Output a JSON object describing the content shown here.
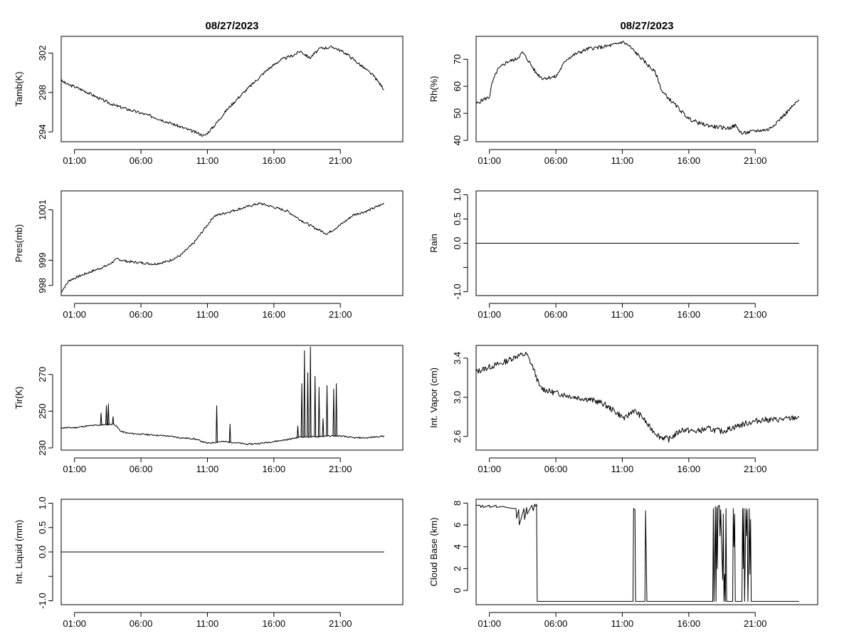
{
  "chart_data": [
    {
      "id": "tamb",
      "type": "line",
      "title": "08/27/2023",
      "xlabel": "",
      "ylabel": "Tamb(K)",
      "xlim": [
        0,
        25.7
      ],
      "ylim": [
        293.0,
        303.7
      ],
      "xticks": [
        {
          "v": 1,
          "label": "01:00"
        },
        {
          "v": 6,
          "label": "06:00"
        },
        {
          "v": 11,
          "label": "11:00"
        },
        {
          "v": 16,
          "label": "16:00"
        },
        {
          "v": 21,
          "label": "21:00"
        }
      ],
      "yticks": [
        {
          "v": 294,
          "label": "294"
        },
        {
          "v": 298,
          "label": "298"
        },
        {
          "v": 302,
          "label": "302"
        }
      ],
      "series": [
        {
          "name": "Tamb",
          "noise": 0.15,
          "seed": 3,
          "x": [
            0,
            0.5,
            1,
            2,
            3,
            4,
            5,
            6,
            7,
            8,
            9,
            10,
            10.8,
            11.5,
            12.5,
            13.5,
            14.5,
            15.5,
            16.5,
            17.5,
            18,
            18.7,
            19.5,
            20.5,
            21.5,
            22.5,
            23.5,
            24.3
          ],
          "y": [
            299.2,
            298.8,
            298.6,
            298.0,
            297.3,
            296.7,
            296.3,
            295.9,
            295.5,
            295.0,
            294.5,
            294.0,
            293.6,
            294.6,
            296.3,
            297.7,
            299.0,
            300.3,
            301.3,
            301.8,
            302.2,
            301.5,
            302.5,
            302.6,
            301.9,
            300.8,
            299.7,
            298.3
          ]
        }
      ]
    },
    {
      "id": "rh",
      "type": "line",
      "title": "08/27/2023",
      "xlabel": "",
      "ylabel": "Rh(%)",
      "xlim": [
        0,
        25.7
      ],
      "ylim": [
        39.5,
        78.5
      ],
      "xticks": [
        {
          "v": 1,
          "label": "01:00"
        },
        {
          "v": 6,
          "label": "06:00"
        },
        {
          "v": 11,
          "label": "11:00"
        },
        {
          "v": 16,
          "label": "16:00"
        },
        {
          "v": 21,
          "label": "21:00"
        }
      ],
      "yticks": [
        {
          "v": 40,
          "label": "40"
        },
        {
          "v": 50,
          "label": "50"
        },
        {
          "v": 60,
          "label": "60"
        },
        {
          "v": 70,
          "label": "70"
        }
      ],
      "series": [
        {
          "name": "Rh",
          "noise": 0.7,
          "seed": 5,
          "x": [
            0,
            0.5,
            1,
            1.2,
            1.6,
            2.3,
            3,
            3.5,
            4,
            4.5,
            5,
            6,
            6.8,
            7.5,
            8.5,
            9.5,
            10.5,
            11,
            11.5,
            12.5,
            13.5,
            14,
            15,
            16,
            17,
            18,
            19,
            19.5,
            20,
            21,
            22,
            23,
            24.3
          ],
          "y": [
            53.5,
            55.0,
            56.0,
            61.0,
            66.0,
            69.0,
            70.0,
            72.5,
            69.0,
            65.0,
            63.0,
            63.5,
            70.0,
            72.0,
            74.0,
            74.5,
            75.5,
            76.5,
            75.0,
            70.0,
            65.0,
            58.0,
            53.0,
            48.0,
            46.0,
            45.0,
            44.5,
            45.5,
            42.5,
            43.5,
            44.0,
            48.5,
            55.0
          ]
        }
      ]
    },
    {
      "id": "pres",
      "type": "line",
      "title": "",
      "xlabel": "",
      "ylabel": "Pres(mb)",
      "xlim": [
        0,
        25.7
      ],
      "ylim": [
        997.6,
        1001.75
      ],
      "xticks": [
        {
          "v": 1,
          "label": "01:00"
        },
        {
          "v": 6,
          "label": "06:00"
        },
        {
          "v": 11,
          "label": "11:00"
        },
        {
          "v": 16,
          "label": "16:00"
        },
        {
          "v": 21,
          "label": "21:00"
        }
      ],
      "yticks": [
        {
          "v": 998,
          "label": "998"
        },
        {
          "v": 999,
          "label": "999"
        },
        {
          "v": 1001,
          "label": "1001"
        }
      ],
      "series": [
        {
          "name": "Pres",
          "noise": 0.05,
          "seed": 7,
          "x": [
            0,
            0.6,
            1.5,
            2.5,
            3.5,
            4.2,
            5,
            6,
            7,
            8,
            9,
            10,
            11,
            11.5,
            12.5,
            13.5,
            14.5,
            15,
            16,
            17,
            18,
            19,
            20,
            21,
            22,
            23,
            24.3
          ],
          "y": [
            997.75,
            998.2,
            998.4,
            998.6,
            998.8,
            999.05,
            998.95,
            998.9,
            998.85,
            998.95,
            999.2,
            999.7,
            1000.4,
            1000.75,
            1000.9,
            1001.05,
            1001.2,
            1001.25,
            1001.1,
            1000.95,
            1000.6,
            1000.3,
            1000.05,
            1000.4,
            1000.8,
            1000.95,
            1001.25
          ]
        }
      ]
    },
    {
      "id": "rain",
      "type": "line",
      "title": "",
      "xlabel": "",
      "ylabel": "Rain",
      "xlim": [
        0,
        25.7
      ],
      "ylim": [
        -1.08,
        1.08
      ],
      "xticks": [
        {
          "v": 1,
          "label": "01:00"
        },
        {
          "v": 6,
          "label": "06:00"
        },
        {
          "v": 11,
          "label": "11:00"
        },
        {
          "v": 16,
          "label": "16:00"
        },
        {
          "v": 21,
          "label": "21:00"
        }
      ],
      "yticks": [
        {
          "v": -1.0,
          "label": "-1.0"
        },
        {
          "v": -0.5,
          "label": ""
        },
        {
          "v": 0.0,
          "label": "0.0"
        },
        {
          "v": 0.5,
          "label": "0.5"
        },
        {
          "v": 1.0,
          "label": "1.0"
        }
      ],
      "series": [
        {
          "name": "Rain",
          "noise": 0,
          "seed": 1,
          "x": [
            0,
            24.3
          ],
          "y": [
            0,
            0
          ]
        }
      ]
    },
    {
      "id": "tir",
      "type": "line",
      "title": "",
      "xlabel": "",
      "ylabel": "Tir(K)",
      "xlim": [
        0,
        25.7
      ],
      "ylim": [
        228.8,
        285.8
      ],
      "xticks": [
        {
          "v": 1,
          "label": "01:00"
        },
        {
          "v": 6,
          "label": "06:00"
        },
        {
          "v": 11,
          "label": "11:00"
        },
        {
          "v": 16,
          "label": "16:00"
        },
        {
          "v": 21,
          "label": "21:00"
        }
      ],
      "yticks": [
        {
          "v": 230,
          "label": "230"
        },
        {
          "v": 250,
          "label": "250"
        },
        {
          "v": 270,
          "label": "270"
        }
      ],
      "series": [
        {
          "name": "Tir",
          "noise": 0.4,
          "seed": 11,
          "x": [
            0,
            1,
            2,
            3,
            4,
            4.5,
            5,
            6,
            7,
            8,
            9,
            10,
            11,
            12,
            13,
            14,
            15,
            16,
            17,
            18,
            19,
            20,
            21,
            22,
            23,
            24.3
          ],
          "y": [
            241.0,
            241.0,
            242.0,
            242.5,
            243.0,
            239.0,
            238.0,
            237.5,
            237.0,
            236.5,
            235.5,
            235.0,
            232.5,
            233.5,
            233.0,
            232.0,
            232.5,
            233.5,
            234.5,
            236.0,
            236.0,
            236.5,
            236.5,
            235.5,
            235.5,
            236.5
          ]
        }
      ],
      "spikes": [
        {
          "x": 3.0,
          "y": 249
        },
        {
          "x": 3.4,
          "y": 253
        },
        {
          "x": 3.55,
          "y": 254
        },
        {
          "x": 3.9,
          "y": 247
        },
        {
          "x": 11.7,
          "y": 253
        },
        {
          "x": 12.7,
          "y": 243
        },
        {
          "x": 17.8,
          "y": 242
        },
        {
          "x": 18.1,
          "y": 265
        },
        {
          "x": 18.3,
          "y": 283
        },
        {
          "x": 18.55,
          "y": 271
        },
        {
          "x": 18.75,
          "y": 285
        },
        {
          "x": 19.1,
          "y": 269
        },
        {
          "x": 19.4,
          "y": 263
        },
        {
          "x": 20.0,
          "y": 264
        },
        {
          "x": 20.5,
          "y": 262
        },
        {
          "x": 20.7,
          "y": 265
        },
        {
          "x": 19.7,
          "y": 246
        }
      ]
    },
    {
      "id": "vapor",
      "type": "line",
      "title": "",
      "xlabel": "",
      "ylabel": "Int. Vapor (cm)",
      "xlim": [
        0,
        25.7
      ],
      "ylim": [
        2.46,
        3.53
      ],
      "xticks": [
        {
          "v": 1,
          "label": "01:00"
        },
        {
          "v": 6,
          "label": "06:00"
        },
        {
          "v": 11,
          "label": "11:00"
        },
        {
          "v": 16,
          "label": "16:00"
        },
        {
          "v": 21,
          "label": "21:00"
        }
      ],
      "yticks": [
        {
          "v": 2.6,
          "label": "2.6"
        },
        {
          "v": 3.0,
          "label": "3.0"
        },
        {
          "v": 3.4,
          "label": "3.4"
        }
      ],
      "series": [
        {
          "name": "Int. Vapor",
          "noise": 0.03,
          "seed": 13,
          "x": [
            0,
            1,
            2,
            3,
            3.8,
            4.3,
            4.8,
            5.5,
            6.5,
            7.5,
            8.5,
            9.5,
            10.5,
            11.2,
            11.8,
            12.5,
            13,
            13.8,
            14.5,
            15.5,
            16.5,
            17.5,
            18.5,
            19.5,
            20.5,
            21.5,
            22.5,
            23.5,
            24.3
          ],
          "y": [
            3.26,
            3.31,
            3.35,
            3.42,
            3.44,
            3.3,
            3.1,
            3.06,
            3.03,
            3.0,
            2.98,
            2.94,
            2.85,
            2.78,
            2.87,
            2.8,
            2.7,
            2.6,
            2.57,
            2.67,
            2.65,
            2.68,
            2.65,
            2.7,
            2.74,
            2.77,
            2.77,
            2.78,
            2.8
          ]
        }
      ]
    },
    {
      "id": "liquid",
      "type": "line",
      "title": "",
      "xlabel": "",
      "ylabel": "Int. Liquid (mm)",
      "xlim": [
        0,
        25.7
      ],
      "ylim": [
        -1.08,
        1.08
      ],
      "xticks": [
        {
          "v": 1,
          "label": "01:00"
        },
        {
          "v": 6,
          "label": "06:00"
        },
        {
          "v": 11,
          "label": "11:00"
        },
        {
          "v": 16,
          "label": "16:00"
        },
        {
          "v": 21,
          "label": "21:00"
        }
      ],
      "yticks": [
        {
          "v": -1.0,
          "label": "-1.0"
        },
        {
          "v": -0.5,
          "label": ""
        },
        {
          "v": 0.0,
          "label": "0.0"
        },
        {
          "v": 0.5,
          "label": "0.5"
        },
        {
          "v": 1.0,
          "label": "1.0"
        }
      ],
      "series": [
        {
          "name": "Int. Liquid",
          "noise": 0,
          "seed": 1,
          "x": [
            0,
            24.3
          ],
          "y": [
            0,
            0
          ]
        }
      ]
    },
    {
      "id": "cloud",
      "type": "line",
      "title": "",
      "xlabel": "",
      "ylabel": "Cloud Base (km)",
      "xlim": [
        0,
        25.7
      ],
      "ylim": [
        -1.3,
        8.35
      ],
      "xticks": [
        {
          "v": 1,
          "label": "01:00"
        },
        {
          "v": 6,
          "label": "06:00"
        },
        {
          "v": 11,
          "label": "11:00"
        },
        {
          "v": 16,
          "label": "16:00"
        },
        {
          "v": 21,
          "label": "21:00"
        }
      ],
      "yticks": [
        {
          "v": 0,
          "label": "0"
        },
        {
          "v": 2,
          "label": "2"
        },
        {
          "v": 4,
          "label": "4"
        },
        {
          "v": 6,
          "label": "6"
        },
        {
          "v": 8,
          "label": "8"
        }
      ],
      "series": [
        {
          "name": "Cloud Base",
          "noise": 0,
          "seed": 1,
          "x": [
            0,
            0.3,
            0.35,
            0.5,
            0.55,
            1.0,
            1.05,
            1.5,
            1.55,
            2.0,
            2.3,
            2.8,
            3.0,
            3.05,
            3.2,
            3.25,
            3.6,
            3.65,
            3.8,
            3.85,
            4.2,
            4.3,
            4.4,
            4.5,
            4.55,
            4.6,
            11.8,
            11.85,
            11.95,
            12.0,
            12.7,
            12.75,
            12.8,
            12.85,
            17.8,
            17.85,
            17.9,
            17.95,
            18.0,
            18.05,
            18.1,
            18.15,
            18.2,
            18.3,
            18.35,
            18.4,
            18.5,
            18.55,
            18.6,
            18.65,
            18.7,
            18.75,
            18.8,
            18.85,
            19.3,
            19.35,
            19.4,
            19.45,
            19.5,
            20.0,
            20.05,
            20.1,
            20.15,
            20.2,
            20.3,
            20.35,
            20.4,
            20.45,
            20.5,
            20.55,
            20.6,
            20.65,
            20.7,
            20.75,
            24.3
          ],
          "y": [
            7.8,
            7.8,
            7.6,
            7.8,
            7.6,
            7.8,
            7.6,
            7.8,
            7.6,
            7.7,
            7.6,
            7.5,
            7.5,
            6.6,
            7.4,
            6.0,
            7.5,
            6.5,
            7.6,
            7.0,
            7.8,
            7.3,
            7.9,
            7.7,
            7.9,
            -1.0,
            -1.0,
            7.5,
            7.4,
            -1.0,
            -1.0,
            7.3,
            3.0,
            -1.0,
            -1.0,
            7.5,
            -1.0,
            3.0,
            7.7,
            -1.0,
            7.6,
            2.0,
            7.7,
            7.8,
            5.0,
            7.4,
            3.0,
            1.0,
            7.0,
            -1.0,
            1.5,
            -1.0,
            7.5,
            -1.0,
            -1.0,
            7.5,
            4.0,
            7.0,
            -1.0,
            -1.0,
            7.5,
            2.0,
            7.5,
            -1.0,
            7.5,
            5.0,
            7.4,
            -1.0,
            3.0,
            7.5,
            1.5,
            6.5,
            -1.0,
            -1.0,
            -1.0
          ]
        }
      ]
    }
  ]
}
